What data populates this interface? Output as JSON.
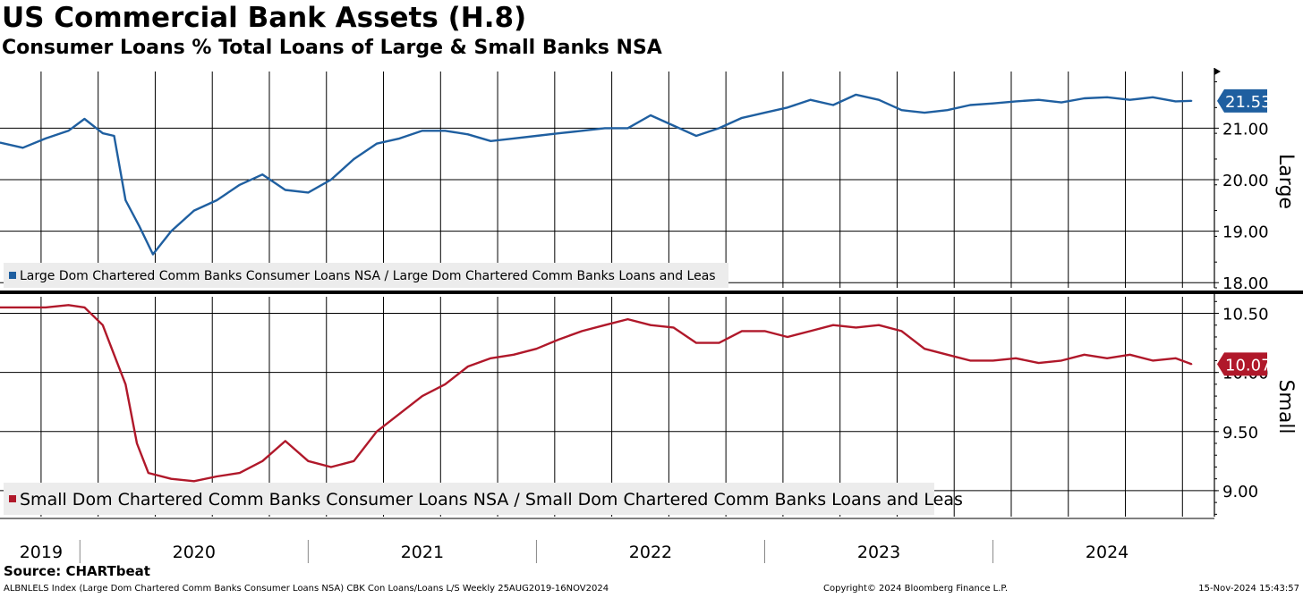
{
  "title": "US Commercial Bank Assets (H.8)",
  "subtitle": "Consumer Loans % Total Loans of Large & Small Banks NSA",
  "source": "Source:  CHARTbeat",
  "footer": {
    "left": "ALBNLELS Index (Large Dom Chartered Comm Banks Consumer Loans NSA) CBK Con Loans/Loans L/S  Weekly 25AUG2019-16NOV2024",
    "copyright": "Copyright© 2024 Bloomberg Finance L.P.",
    "timestamp": "15-Nov-2024 15:43:57"
  },
  "colors": {
    "large": "#1f5fa0",
    "small": "#b0182a",
    "grid": "#000000",
    "legend_bg": "#ececec"
  },
  "chart_data": [
    {
      "type": "line",
      "panel": "Large",
      "ylabel": "Large",
      "ylim": [
        17.9,
        22.1
      ],
      "yticks": [
        18.0,
        19.0,
        20.0,
        21.0
      ],
      "ytick_labels": [
        "18.00",
        "19.00",
        "20.00",
        "21.00"
      ],
      "last_value_label": "21.53",
      "legend": "Large Dom Chartered Comm Banks Consumer Loans NSA / Large Dom Chartered Comm Banks Loans and Leas",
      "legend_position": "bottom-left",
      "series": [
        {
          "name": "Large Dom Chartered Comm Banks Consumer Loans NSA / Large Dom Chartered Comm Banks Loans and Leas",
          "x": [
            2019.65,
            2019.75,
            2019.85,
            2019.95,
            2020.02,
            2020.1,
            2020.15,
            2020.2,
            2020.26,
            2020.32,
            2020.4,
            2020.5,
            2020.6,
            2020.7,
            2020.8,
            2020.9,
            2021.0,
            2021.1,
            2021.2,
            2021.3,
            2021.4,
            2021.5,
            2021.6,
            2021.7,
            2021.8,
            2021.9,
            2022.0,
            2022.1,
            2022.2,
            2022.3,
            2022.4,
            2022.5,
            2022.6,
            2022.7,
            2022.8,
            2022.9,
            2023.0,
            2023.1,
            2023.2,
            2023.3,
            2023.4,
            2023.5,
            2023.6,
            2023.7,
            2023.8,
            2023.9,
            2024.0,
            2024.1,
            2024.2,
            2024.3,
            2024.4,
            2024.5,
            2024.6,
            2024.7,
            2024.8,
            2024.87
          ],
          "values": [
            20.72,
            20.62,
            20.8,
            20.95,
            21.18,
            20.9,
            20.85,
            19.6,
            19.1,
            18.55,
            19.0,
            19.4,
            19.6,
            19.9,
            20.1,
            19.8,
            19.75,
            20.0,
            20.4,
            20.7,
            20.8,
            20.95,
            20.95,
            20.88,
            20.75,
            20.8,
            20.85,
            20.9,
            20.95,
            21.0,
            21.0,
            21.25,
            21.05,
            20.85,
            21.0,
            21.2,
            21.3,
            21.4,
            21.55,
            21.45,
            21.65,
            21.55,
            21.35,
            21.3,
            21.35,
            21.45,
            21.48,
            21.52,
            21.55,
            21.5,
            21.58,
            21.6,
            21.55,
            21.6,
            21.52,
            21.53
          ]
        }
      ]
    },
    {
      "type": "line",
      "panel": "Small",
      "ylabel": "Small",
      "ylim": [
        8.78,
        10.64
      ],
      "yticks": [
        9.0,
        9.5,
        10.0,
        10.5
      ],
      "ytick_labels": [
        "9.00",
        "9.50",
        "10.00",
        "10.50"
      ],
      "last_value_label": "10.07",
      "legend": "Small Dom Chartered Comm Banks Consumer Loans NSA / Small Dom Chartered Comm Banks Loans and Leas",
      "legend_position": "bottom-left",
      "series": [
        {
          "name": "Small Dom Chartered Comm Banks Consumer Loans NSA / Small Dom Chartered Comm Banks Loans and Leas",
          "x": [
            2019.65,
            2019.75,
            2019.85,
            2019.95,
            2020.02,
            2020.1,
            2020.15,
            2020.2,
            2020.25,
            2020.3,
            2020.4,
            2020.5,
            2020.6,
            2020.7,
            2020.8,
            2020.9,
            2021.0,
            2021.1,
            2021.2,
            2021.3,
            2021.4,
            2021.5,
            2021.6,
            2021.7,
            2021.8,
            2021.9,
            2022.0,
            2022.1,
            2022.2,
            2022.3,
            2022.4,
            2022.5,
            2022.6,
            2022.7,
            2022.8,
            2022.9,
            2023.0,
            2023.1,
            2023.2,
            2023.3,
            2023.4,
            2023.5,
            2023.6,
            2023.7,
            2023.8,
            2023.9,
            2024.0,
            2024.1,
            2024.2,
            2024.3,
            2024.4,
            2024.5,
            2024.6,
            2024.7,
            2024.8,
            2024.87
          ],
          "values": [
            10.55,
            10.55,
            10.55,
            10.57,
            10.55,
            10.4,
            10.15,
            9.9,
            9.4,
            9.15,
            9.1,
            9.08,
            9.12,
            9.15,
            9.25,
            9.42,
            9.25,
            9.2,
            9.25,
            9.5,
            9.65,
            9.8,
            9.9,
            10.05,
            10.12,
            10.15,
            10.2,
            10.28,
            10.35,
            10.4,
            10.45,
            10.4,
            10.38,
            10.25,
            10.25,
            10.35,
            10.35,
            10.3,
            10.35,
            10.4,
            10.38,
            10.4,
            10.35,
            10.2,
            10.15,
            10.1,
            10.1,
            10.12,
            10.08,
            10.1,
            10.15,
            10.12,
            10.15,
            10.1,
            10.12,
            10.07
          ]
        }
      ]
    }
  ],
  "x_axis": {
    "labels": [
      {
        "text": "2019",
        "at": 2019.83
      },
      {
        "text": "2020",
        "at": 2020.5
      },
      {
        "text": "2021",
        "at": 2021.5
      },
      {
        "text": "2022",
        "at": 2022.5
      },
      {
        "text": "2023",
        "at": 2023.5
      },
      {
        "text": "2024",
        "at": 2024.5
      }
    ],
    "separators": [
      2020.0,
      2021.0,
      2022.0,
      2023.0,
      2024.0
    ],
    "range": [
      2019.65,
      2024.97
    ]
  }
}
